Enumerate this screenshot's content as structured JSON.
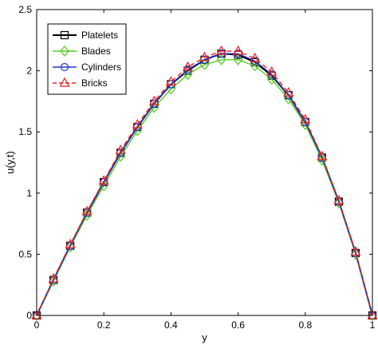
{
  "chart_data": {
    "type": "line",
    "xlabel": "y",
    "ylabel": "u(y,t)",
    "xlim": [
      0,
      1
    ],
    "ylim": [
      0,
      2.5
    ],
    "xticks": [
      "0",
      "0.2",
      "0.4",
      "0.6",
      "0.8",
      "1"
    ],
    "yticks": [
      "0",
      "0.5",
      "1",
      "1.5",
      "2",
      "2.5"
    ],
    "grid": false,
    "legend_position": "top-left",
    "x": [
      0,
      0.05,
      0.1,
      0.15,
      0.2,
      0.25,
      0.3,
      0.35,
      0.4,
      0.45,
      0.5,
      0.55,
      0.6,
      0.65,
      0.7,
      0.75,
      0.8,
      0.85,
      0.9,
      0.95,
      1
    ],
    "series": [
      {
        "name": "Platelets",
        "color": "#000000",
        "marker": "square",
        "dash": "solid",
        "values": [
          0,
          0.29,
          0.57,
          0.84,
          1.09,
          1.33,
          1.54,
          1.73,
          1.89,
          2.0,
          2.09,
          2.14,
          2.13,
          2.07,
          1.96,
          1.8,
          1.58,
          1.29,
          0.93,
          0.51,
          0
        ]
      },
      {
        "name": "Blades",
        "color": "#55cc22",
        "marker": "diamond",
        "dash": "solid",
        "values": [
          0,
          0.28,
          0.56,
          0.82,
          1.06,
          1.3,
          1.51,
          1.7,
          1.85,
          1.97,
          2.05,
          2.09,
          2.09,
          2.04,
          1.93,
          1.77,
          1.56,
          1.27,
          0.92,
          0.5,
          0
        ]
      },
      {
        "name": "Cylinders",
        "color": "#2233cc",
        "marker": "circle",
        "dash": "solid",
        "values": [
          0,
          0.29,
          0.57,
          0.84,
          1.09,
          1.33,
          1.54,
          1.73,
          1.89,
          2.01,
          2.09,
          2.14,
          2.14,
          2.08,
          1.97,
          1.8,
          1.58,
          1.29,
          0.93,
          0.51,
          0
        ]
      },
      {
        "name": "Bricks",
        "color": "#ee2222",
        "marker": "triangle",
        "dash": "dashed",
        "values": [
          0,
          0.3,
          0.58,
          0.85,
          1.1,
          1.35,
          1.56,
          1.75,
          1.91,
          2.03,
          2.11,
          2.16,
          2.16,
          2.1,
          1.99,
          1.82,
          1.6,
          1.3,
          0.94,
          0.52,
          0
        ]
      }
    ]
  }
}
